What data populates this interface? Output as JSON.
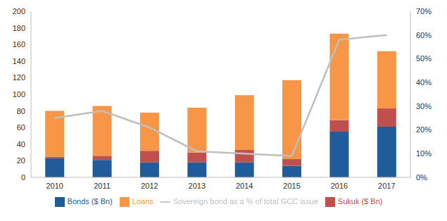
{
  "chart_data": {
    "type": "bar",
    "stacked": true,
    "grid": false,
    "legend": "bottom",
    "categories": [
      "2010",
      "2011",
      "2012",
      "2013",
      "2014",
      "2015",
      "2016",
      "2017"
    ],
    "ylim": [
      0,
      200
    ],
    "yticks": [
      0,
      20,
      40,
      60,
      80,
      100,
      120,
      140,
      160,
      180,
      200
    ],
    "y2lim": [
      0,
      70
    ],
    "y2ticks": [
      {
        "value": 0,
        "label": "0%"
      },
      {
        "value": 10,
        "label": "10%"
      },
      {
        "value": 20,
        "label": "20%"
      },
      {
        "value": 30,
        "label": "30%"
      },
      {
        "value": 40,
        "label": "40%"
      },
      {
        "value": 50,
        "label": "50%"
      },
      {
        "value": 60,
        "label": "60%"
      },
      {
        "value": 70,
        "label": "70%"
      }
    ],
    "series": [
      {
        "name": "Bonds ($ Bn)",
        "type": "bar",
        "color": "#1f5c99",
        "values": [
          23,
          21,
          18,
          18,
          18,
          14,
          55,
          61
        ]
      },
      {
        "name": "Sukuk ($ Bn)",
        "type": "bar",
        "color": "#c0504d",
        "values": [
          2,
          5,
          14,
          12,
          15,
          8,
          14,
          22
        ]
      },
      {
        "name": "Loans",
        "type": "bar",
        "color": "#f79646",
        "values": [
          55,
          60,
          46,
          54,
          66,
          95,
          104,
          69
        ]
      },
      {
        "name": "Sovereign bond as a % of total GCC issue",
        "type": "line",
        "axis": "y2",
        "color": "#bfbfbf",
        "marker": "none",
        "line_style": "solid",
        "values": [
          25,
          28,
          21,
          11,
          10,
          9,
          58,
          60
        ]
      }
    ]
  }
}
